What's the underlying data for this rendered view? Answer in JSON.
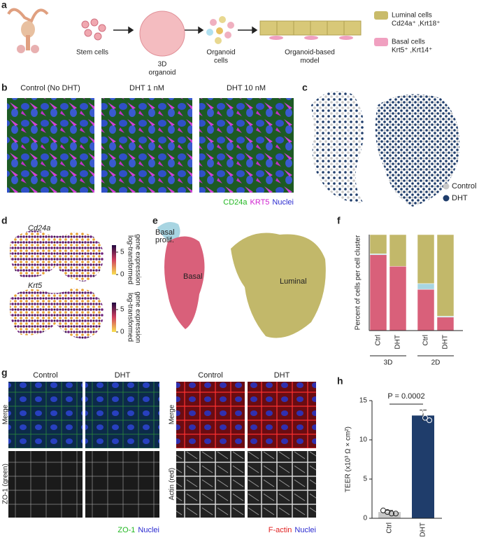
{
  "panel_labels": [
    "a",
    "b",
    "c",
    "d",
    "e",
    "f",
    "g",
    "h"
  ],
  "schematic": {
    "steps": [
      {
        "lines": [
          "Stem cells"
        ]
      },
      {
        "lines": [
          "3D",
          "organoid"
        ]
      },
      {
        "lines": [
          "Organoid",
          "cells"
        ]
      },
      {
        "lines": [
          "Organoid-based",
          "model"
        ]
      }
    ],
    "legend": [
      {
        "lines": [
          "Luminal cells",
          "Cd24a⁺ ,Krt18⁺"
        ],
        "color": "#c9bb6a"
      },
      {
        "lines": [
          "Basal cells",
          "Krt5⁺ ,Krt14⁺"
        ],
        "color": "#f0a0c0"
      }
    ]
  },
  "micrographs": {
    "titles": [
      "Control (No DHT)",
      "DHT 1 nM",
      "DHT 10 nM"
    ],
    "stains": [
      {
        "text": "CD24a",
        "color": "#22b822"
      },
      {
        "text": "KRT5",
        "color": "#d020d0"
      },
      {
        "text": "Nuclei",
        "color": "#2a2ad0"
      }
    ]
  },
  "umap_condition": {
    "legend": [
      {
        "name": "Control",
        "color": "#c8c8c8"
      },
      {
        "name": "DHT",
        "color": "#1f3d6b"
      }
    ]
  },
  "umap_expression": {
    "genes": [
      "Cd24a",
      "Krt5"
    ],
    "colorbar_label": [
      "log-transformed",
      "gene expression"
    ],
    "colorbar_ticks": [
      0,
      5
    ]
  },
  "umap_clusters": {
    "labels": [
      {
        "lines": [
          "Basal",
          "prolif."
        ]
      },
      {
        "lines": [
          "Basal"
        ]
      },
      {
        "lines": [
          "Luminal"
        ]
      }
    ]
  },
  "tight_junctions": [
    {
      "titles": [
        "Control",
        "DHT"
      ],
      "rows": [
        "Merge",
        "ZO-1 (green)"
      ],
      "legend": [
        {
          "text": "ZO-1",
          "color": "#22b822"
        },
        {
          "text": "Nuclei",
          "color": "#2a2ad0"
        }
      ]
    },
    {
      "titles": [
        "Control",
        "DHT"
      ],
      "rows": [
        "Merge",
        "Actin (red)"
      ],
      "legend": [
        {
          "text": "F-actin",
          "color": "#e02020"
        },
        {
          "text": "Nuclei",
          "color": "#2a2ad0"
        }
      ]
    }
  ],
  "chart_data": [
    {
      "type": "stacked_bar",
      "ylabel": "Percent of cells per cell cluster",
      "categories": [
        "Ctrl",
        "DHT",
        "Ctrl",
        "DHT"
      ],
      "groups": [
        "3D",
        "2D"
      ],
      "series": [
        {
          "color": "#d9607a",
          "values": [
            79,
            67,
            43,
            14
          ]
        },
        {
          "color": "#a8d5e2",
          "values": [
            1,
            0,
            6,
            1
          ]
        },
        {
          "color": "#c2b86a",
          "values": [
            20,
            33,
            51,
            85
          ]
        }
      ],
      "ylim": [
        0,
        100
      ]
    },
    {
      "type": "bar",
      "ylabel": "TEER (x10³ Ω × cm²)",
      "categories": [
        "Ctrl",
        "DHT"
      ],
      "values": [
        0.8,
        13.1
      ],
      "errors": [
        0.2,
        0.7
      ],
      "colors": [
        "#c8c8c8",
        "#1f3d6b"
      ],
      "points": [
        [
          1.0,
          0.8,
          0.6,
          0.6
        ],
        [
          14.0,
          13.6,
          12.8,
          12.5
        ]
      ],
      "ylim": [
        0,
        15
      ],
      "yticks": [
        0,
        5,
        10,
        15
      ],
      "annotation": "P = 0.0002"
    }
  ]
}
